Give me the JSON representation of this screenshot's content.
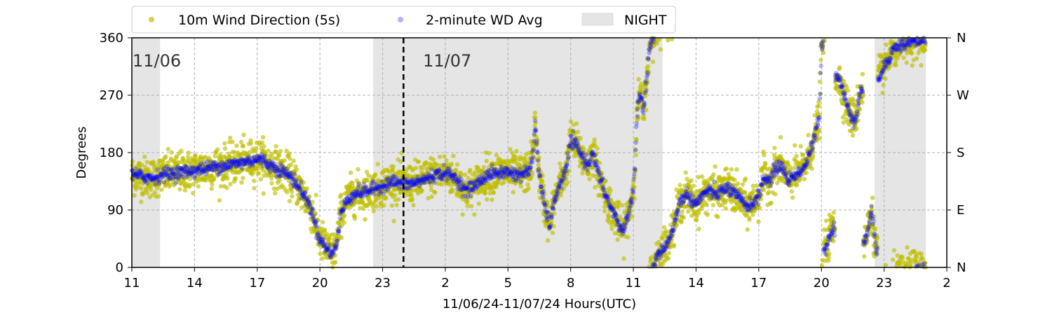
{
  "chart_data": {
    "type": "scatter",
    "xlabel": "11/06/24-11/07/24  Hours(UTC)",
    "ylabel": "Degrees",
    "x_range_hours": [
      11,
      50
    ],
    "xlim": [
      "2024-11-06 11:00",
      "2024-11-08 02:00"
    ],
    "ylim": [
      0,
      360
    ],
    "x_ticks": [
      {
        "hour": 11,
        "label": "11"
      },
      {
        "hour": 14,
        "label": "14"
      },
      {
        "hour": 17,
        "label": "17"
      },
      {
        "hour": 20,
        "label": "20"
      },
      {
        "hour": 23,
        "label": "23"
      },
      {
        "hour": 26,
        "label": "2"
      },
      {
        "hour": 29,
        "label": "5"
      },
      {
        "hour": 32,
        "label": "8"
      },
      {
        "hour": 35,
        "label": "11"
      },
      {
        "hour": 38,
        "label": "14"
      },
      {
        "hour": 41,
        "label": "17"
      },
      {
        "hour": 44,
        "label": "20"
      },
      {
        "hour": 47,
        "label": "23"
      },
      {
        "hour": 50,
        "label": "2"
      }
    ],
    "y_ticks_left": [
      {
        "value": 0,
        "label": "0"
      },
      {
        "value": 90,
        "label": "90"
      },
      {
        "value": 180,
        "label": "180"
      },
      {
        "value": 270,
        "label": "270"
      },
      {
        "value": 360,
        "label": "360"
      }
    ],
    "y_ticks_right": [
      {
        "value": 0,
        "label": "N"
      },
      {
        "value": 90,
        "label": "E"
      },
      {
        "value": 180,
        "label": "S"
      },
      {
        "value": 270,
        "label": "W"
      },
      {
        "value": 360,
        "label": "N"
      }
    ],
    "grid": true,
    "legend_position": "top",
    "legend": [
      {
        "label": "10m Wind Direction (5s)",
        "color": "#bfbf00",
        "marker": "dot"
      },
      {
        "label": "2-minute WD Avg",
        "color": "#0000ff",
        "marker": "dot"
      },
      {
        "label": "NIGHT",
        "color": "#e5e5e5",
        "marker": "rect"
      }
    ],
    "night_periods_hours": [
      [
        11,
        12.35
      ],
      [
        22.55,
        36.4
      ],
      [
        46.55,
        49.0
      ]
    ],
    "day_divider_hour": 24.0,
    "date_annotations": [
      {
        "hour": 11.0,
        "label": "11/06"
      },
      {
        "hour": 24.9,
        "label": "11/07"
      }
    ],
    "series": [
      {
        "name": "2-minute WD Avg",
        "color": "#0000ff",
        "points": [
          [
            11.0,
            145
          ],
          [
            11.5,
            143
          ],
          [
            12.0,
            140
          ],
          [
            12.5,
            146
          ],
          [
            13.0,
            148
          ],
          [
            13.5,
            150
          ],
          [
            14.0,
            152
          ],
          [
            14.5,
            155
          ],
          [
            15.0,
            158
          ],
          [
            15.5,
            160
          ],
          [
            16.0,
            163
          ],
          [
            16.5,
            166
          ],
          [
            17.0,
            170
          ],
          [
            17.3,
            168
          ],
          [
            17.6,
            160
          ],
          [
            18.0,
            155
          ],
          [
            18.5,
            145
          ],
          [
            18.8,
            135
          ],
          [
            19.0,
            125
          ],
          [
            19.3,
            110
          ],
          [
            19.6,
            90
          ],
          [
            19.8,
            65
          ],
          [
            20.0,
            45
          ],
          [
            20.3,
            30
          ],
          [
            20.6,
            22
          ],
          [
            20.8,
            35
          ],
          [
            21.0,
            85
          ],
          [
            21.3,
            105
          ],
          [
            21.6,
            115
          ],
          [
            22.0,
            118
          ],
          [
            22.5,
            122
          ],
          [
            23.0,
            128
          ],
          [
            23.5,
            135
          ],
          [
            24.0,
            130
          ],
          [
            24.5,
            132
          ],
          [
            25.0,
            138
          ],
          [
            25.5,
            145
          ],
          [
            26.0,
            148
          ],
          [
            26.5,
            140
          ],
          [
            27.0,
            120
          ],
          [
            27.5,
            130
          ],
          [
            28.0,
            145
          ],
          [
            28.5,
            148
          ],
          [
            29.0,
            150
          ],
          [
            29.5,
            145
          ],
          [
            30.0,
            150
          ],
          [
            30.2,
            175
          ],
          [
            30.3,
            230
          ],
          [
            30.5,
            140
          ],
          [
            30.8,
            90
          ],
          [
            31.0,
            65
          ],
          [
            31.3,
            115
          ],
          [
            31.8,
            155
          ],
          [
            32.0,
            200
          ],
          [
            32.3,
            190
          ],
          [
            32.6,
            170
          ],
          [
            32.9,
            160
          ],
          [
            33.0,
            185
          ],
          [
            33.3,
            150
          ],
          [
            33.6,
            120
          ],
          [
            33.9,
            95
          ],
          [
            34.2,
            75
          ],
          [
            34.5,
            55
          ],
          [
            34.8,
            90
          ],
          [
            35.0,
            120
          ],
          [
            35.1,
            180
          ],
          [
            35.2,
            250
          ],
          [
            35.3,
            270
          ],
          [
            35.4,
            260
          ],
          [
            35.5,
            245
          ],
          [
            35.7,
            320
          ],
          [
            35.8,
            350
          ],
          [
            36.0,
            360
          ],
          [
            36.1,
            15
          ],
          [
            36.3,
            25
          ],
          [
            36.6,
            35
          ],
          [
            36.9,
            60
          ],
          [
            37.2,
            100
          ],
          [
            37.5,
            115
          ],
          [
            38.0,
            100
          ],
          [
            38.5,
            120
          ],
          [
            39.0,
            115
          ],
          [
            39.5,
            125
          ],
          [
            40.0,
            110
          ],
          [
            40.5,
            95
          ],
          [
            41.0,
            110
          ],
          [
            41.2,
            140
          ],
          [
            41.5,
            135
          ],
          [
            41.8,
            155
          ],
          [
            42.1,
            160
          ],
          [
            42.4,
            135
          ],
          [
            42.7,
            145
          ],
          [
            43.0,
            150
          ],
          [
            43.3,
            165
          ],
          [
            43.6,
            195
          ],
          [
            43.9,
            235
          ],
          [
            44.0,
            350
          ],
          [
            44.2,
            30
          ],
          [
            44.5,
            60
          ],
          [
            44.8,
            300
          ],
          [
            45.0,
            280
          ],
          [
            45.3,
            245
          ],
          [
            45.6,
            230
          ],
          [
            45.9,
            280
          ],
          [
            46.1,
            40
          ],
          [
            46.4,
            90
          ],
          [
            46.6,
            30
          ],
          [
            46.8,
            300
          ],
          [
            47.0,
            315
          ],
          [
            47.5,
            345
          ],
          [
            48.0,
            350
          ],
          [
            48.5,
            355
          ],
          [
            49.0,
            358
          ]
        ]
      },
      {
        "name": "10m Wind Direction (5s)",
        "color": "#bfbf00",
        "spread_degrees": 28,
        "follows_series": "2-minute WD Avg"
      }
    ]
  }
}
